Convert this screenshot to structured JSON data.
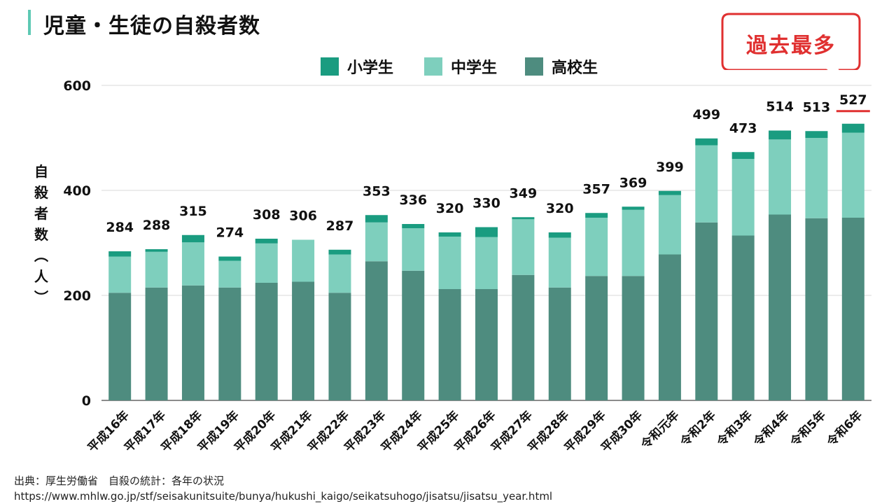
{
  "title": "児童・生徒の自殺者数",
  "callout": {
    "text": "過去最多",
    "color": "#e03030"
  },
  "source": {
    "line1": "出典：厚生労働省　自殺の統計：各年の状況",
    "line2": "https://www.mhlw.go.jp/stf/seisakunitsuite/bunya/hukushi_kaigo/seikatsuhogo/jisatsu/jisatsu_year.html"
  },
  "colors": {
    "elementary": "#1a9c80",
    "junior_high": "#7ecfbd",
    "high_school": "#4e8c7f",
    "title_accent": "#5ec9b4",
    "highlight": "#e03030"
  },
  "chart_data": {
    "type": "bar",
    "stacked": true,
    "ylabel": "自殺者数（人）",
    "ylim": [
      0,
      600
    ],
    "yticks": [
      0,
      200,
      400,
      600
    ],
    "grid": true,
    "legend_position": "top",
    "categories": [
      "平成16年",
      "平成17年",
      "平成18年",
      "平成19年",
      "平成20年",
      "平成21年",
      "平成22年",
      "平成23年",
      "平成24年",
      "平成25年",
      "平成26年",
      "平成27年",
      "平成28年",
      "平成29年",
      "平成30年",
      "令和元年",
      "令和2年",
      "令和3年",
      "令和4年",
      "令和5年",
      "令和6年"
    ],
    "totals": [
      284,
      288,
      315,
      274,
      308,
      306,
      287,
      353,
      336,
      320,
      330,
      349,
      320,
      357,
      369,
      399,
      499,
      473,
      514,
      513,
      527
    ],
    "series": [
      {
        "name": "高校生",
        "values": [
          205,
          215,
          219,
          215,
          224,
          226,
          205,
          265,
          247,
          212,
          212,
          239,
          215,
          237,
          237,
          278,
          339,
          314,
          354,
          347,
          348
        ]
      },
      {
        "name": "中学生",
        "values": [
          69,
          68,
          82,
          51,
          75,
          80,
          73,
          74,
          81,
          100,
          99,
          106,
          95,
          111,
          126,
          113,
          147,
          146,
          143,
          153,
          162
        ]
      },
      {
        "name": "小学生",
        "values": [
          10,
          5,
          14,
          8,
          9,
          0,
          9,
          14,
          8,
          8,
          19,
          4,
          10,
          9,
          6,
          8,
          13,
          13,
          17,
          13,
          17
        ]
      }
    ],
    "highlight_index": 20
  }
}
